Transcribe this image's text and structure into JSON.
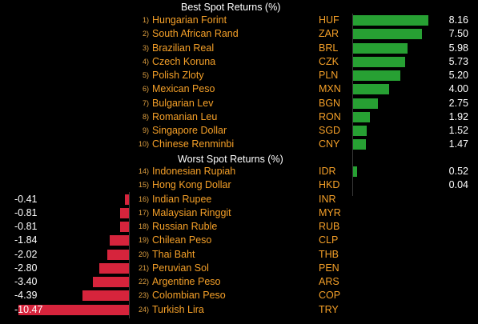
{
  "chart_data": {
    "type": "bar",
    "best": {
      "title": "Best Spot Returns (%)",
      "rows": [
        {
          "rank": "1)",
          "name": "Hungarian Forint",
          "code": "HUF",
          "value": 8.16
        },
        {
          "rank": "2)",
          "name": "South African Rand",
          "code": "ZAR",
          "value": 7.5
        },
        {
          "rank": "3)",
          "name": "Brazilian Real",
          "code": "BRL",
          "value": 5.98
        },
        {
          "rank": "4)",
          "name": "Czech Koruna",
          "code": "CZK",
          "value": 5.73
        },
        {
          "rank": "5)",
          "name": "Polish Zloty",
          "code": "PLN",
          "value": 5.2
        },
        {
          "rank": "6)",
          "name": "Mexican Peso",
          "code": "MXN",
          "value": 4.0
        },
        {
          "rank": "7)",
          "name": "Bulgarian Lev",
          "code": "BGN",
          "value": 2.75
        },
        {
          "rank": "8)",
          "name": "Romanian Leu",
          "code": "RON",
          "value": 1.92
        },
        {
          "rank": "9)",
          "name": "Singapore Dollar",
          "code": "SGD",
          "value": 1.52
        },
        {
          "rank": "10)",
          "name": "Chinese Renminbi",
          "code": "CNY",
          "value": 1.47
        }
      ]
    },
    "worst": {
      "title": "Worst Spot Returns (%)",
      "rows": [
        {
          "rank": "14)",
          "name": "Indonesian Rupiah",
          "code": "IDR",
          "value": 0.52
        },
        {
          "rank": "15)",
          "name": "Hong Kong Dollar",
          "code": "HKD",
          "value": 0.04
        },
        {
          "rank": "16)",
          "name": "Indian Rupee",
          "code": "INR",
          "value": -0.41
        },
        {
          "rank": "17)",
          "name": "Malaysian Ringgit",
          "code": "MYR",
          "value": -0.81
        },
        {
          "rank": "18)",
          "name": "Russian Ruble",
          "code": "RUB",
          "value": -0.81
        },
        {
          "rank": "19)",
          "name": "Chilean Peso",
          "code": "CLP",
          "value": -1.84
        },
        {
          "rank": "20)",
          "name": "Thai Baht",
          "code": "THB",
          "value": -2.02
        },
        {
          "rank": "21)",
          "name": "Peruvian Sol",
          "code": "PEN",
          "value": -2.8
        },
        {
          "rank": "22)",
          "name": "Argentine Peso",
          "code": "ARS",
          "value": -3.4
        },
        {
          "rank": "23)",
          "name": "Colombian Peso",
          "code": "COP",
          "value": -4.39
        },
        {
          "rank": "24)",
          "name": "Turkish Lira",
          "code": "TRY",
          "value": -10.47
        }
      ]
    },
    "colors": {
      "positive": "#27a033",
      "negative": "#d6243c",
      "text": "#f5a028",
      "value_text": "#ffffff",
      "background": "#000000"
    }
  }
}
